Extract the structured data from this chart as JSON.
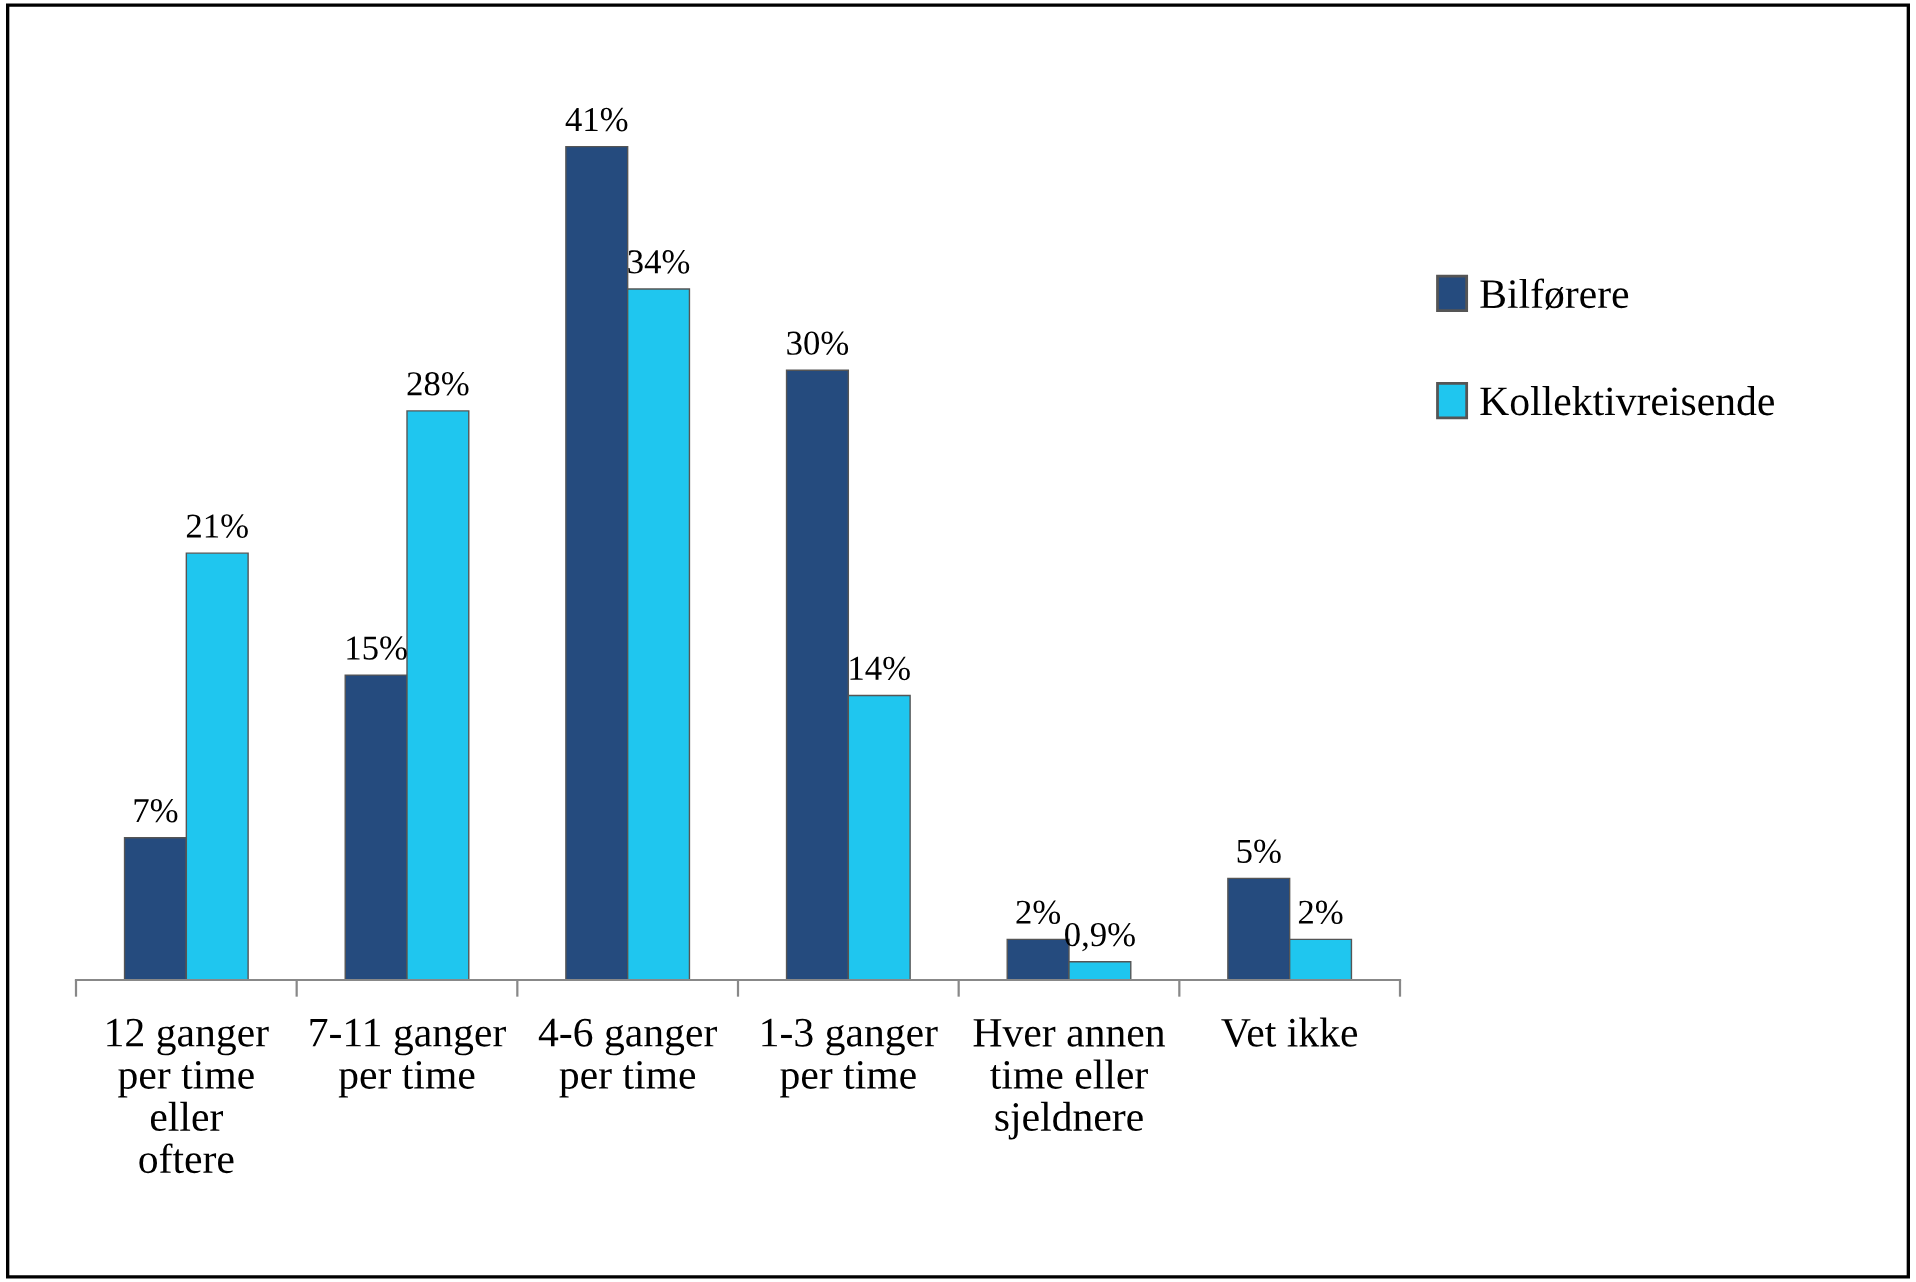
{
  "chart_data": {
    "type": "bar",
    "categories": [
      "12 ganger per time eller oftere",
      "7-11 ganger per time",
      "4-6 ganger per time",
      "1-3 ganger per time",
      "Hver annen time eller sjeldnere",
      "Vet ikke"
    ],
    "series": [
      {
        "name": "Bilførere",
        "color": "#254b7e",
        "values": [
          7,
          15,
          41,
          30,
          2,
          5
        ],
        "value_labels": [
          "7%",
          "15%",
          "41%",
          "30%",
          "2%",
          "5%"
        ]
      },
      {
        "name": "Kollektivreisende",
        "color": "#1fc6ef",
        "values": [
          21,
          28,
          34,
          14,
          0.9,
          2
        ],
        "value_labels": [
          "21%",
          "28%",
          "34%",
          "14%",
          "0,9%",
          "2%"
        ]
      }
    ],
    "legend": "right",
    "grid": false
  }
}
